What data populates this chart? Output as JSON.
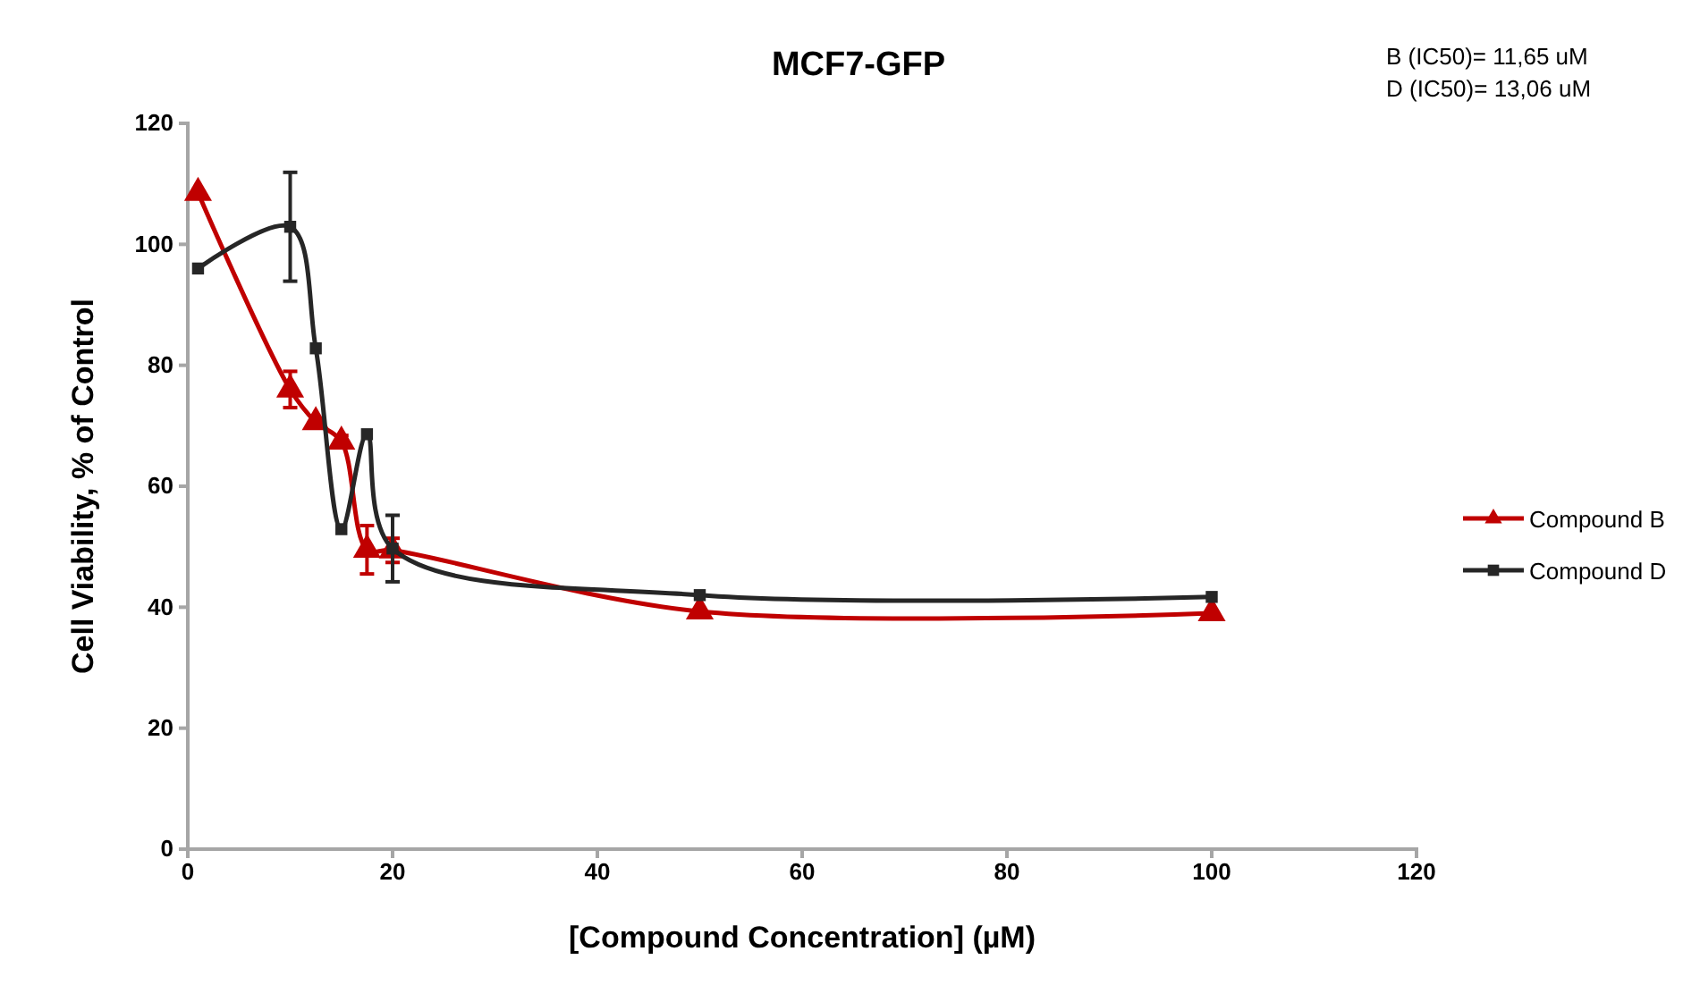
{
  "chart_data": {
    "type": "line",
    "title": "MCF7-GFP",
    "xlabel": "[Compound Concentration] (µM)",
    "ylabel": "Cell Viability, % of Control",
    "annotations": [
      "B (IC50)= 11,65 uM",
      "D (IC50)= 13,06 uM"
    ],
    "xlim": [
      0,
      120
    ],
    "xticks": [
      0,
      20,
      40,
      60,
      80,
      100,
      120
    ],
    "ylim": [
      0,
      120
    ],
    "yticks": [
      0,
      20,
      40,
      60,
      80,
      100,
      120
    ],
    "grid": false,
    "legend": "right",
    "series": [
      {
        "name": "Compound B",
        "color": "#c00000",
        "marker": "triangle",
        "x": [
          1,
          10,
          12.5,
          15,
          17.5,
          20,
          50,
          100
        ],
        "values": [
          108.5,
          76,
          70.6,
          67.4,
          49.5,
          49.4,
          39.3,
          39
        ],
        "errors": [
          null,
          3,
          null,
          1,
          4,
          2,
          null,
          null
        ]
      },
      {
        "name": "Compound D",
        "color": "#262626",
        "marker": "square",
        "x": [
          1,
          10,
          12.5,
          15,
          17.5,
          20,
          50,
          100
        ],
        "values": [
          96,
          102.9,
          82.8,
          52.9,
          68.6,
          49.7,
          42,
          41.7
        ],
        "errors": [
          null,
          9,
          null,
          null,
          null,
          5.5,
          null,
          null
        ]
      }
    ]
  }
}
